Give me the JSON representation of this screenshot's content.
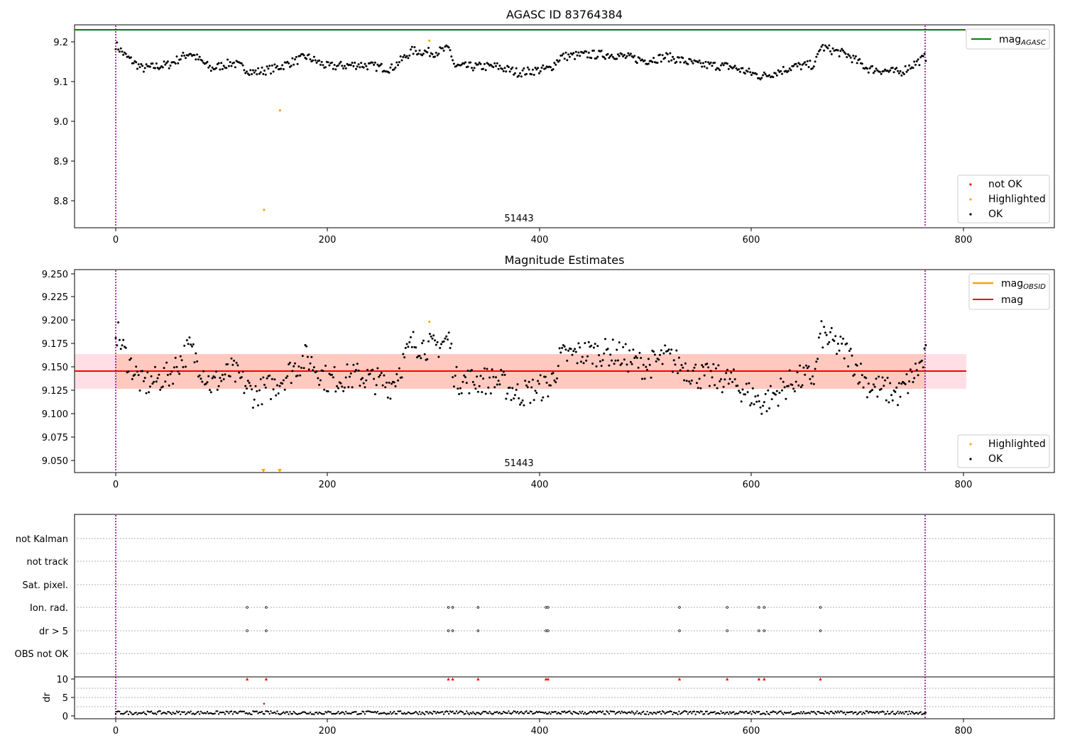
{
  "figure": {
    "panel1": {
      "title": "AGASC ID 83764384",
      "obsid_label": "51443",
      "yticks": [
        "8.8",
        "8.9",
        "9.0",
        "9.1",
        "9.2"
      ],
      "xticks": [
        "0",
        "200",
        "400",
        "600",
        "800"
      ],
      "legend_top": {
        "line_label": "mag",
        "line_sub": "AGASC"
      },
      "legend_bottom": [
        "not OK",
        "Highlighted",
        "OK"
      ]
    },
    "panel2": {
      "title": "Magnitude Estimates",
      "obsid_label": "51443",
      "yticks": [
        "9.050",
        "9.075",
        "9.100",
        "9.125",
        "9.150",
        "9.175",
        "9.200",
        "9.225",
        "9.250"
      ],
      "xticks": [
        "0",
        "200",
        "400",
        "600",
        "800"
      ],
      "legend_top": {
        "line1_label": "mag",
        "line1_sub": "OBSID",
        "line2_label": "mag"
      },
      "legend_bottom": [
        "Highlighted",
        "OK"
      ]
    },
    "panel3": {
      "flag_labels": [
        "not Kalman",
        "not track",
        "Sat. pixel.",
        "Ion. rad.",
        "dr > 5",
        "OBS not OK"
      ],
      "dr_label": "dr",
      "dr_yticks": [
        "0",
        "5",
        "10"
      ],
      "xticks": [
        "0",
        "200",
        "400",
        "600",
        "800"
      ]
    }
  },
  "colors": {
    "ok": "#000000",
    "highlighted": "#ffa500",
    "not_ok": "#ff0000",
    "agasc_line": "#008000",
    "obsid_line": "#ffa500",
    "mag_line": "#ff0000",
    "obs_boundary": "#800080",
    "mag_band_outer": "#ffc0cb",
    "mag_band_inner": "#ffa07a"
  },
  "chart_data": [
    {
      "type": "scatter",
      "title": "AGASC ID 83764384",
      "xlim": [
        -40,
        890
      ],
      "ylim": [
        8.73,
        9.24
      ],
      "agasc_mag": 9.23,
      "obs_boundaries": [
        0,
        765
      ],
      "highlighted_points": [
        [
          140,
          8.775
        ],
        [
          155,
          9.025
        ],
        [
          296,
          9.2
        ]
      ],
      "ok_series_x_range": [
        0,
        765
      ],
      "ok_trend": [
        [
          0,
          9.19
        ],
        [
          10,
          9.16
        ],
        [
          25,
          9.13
        ],
        [
          50,
          9.14
        ],
        [
          70,
          9.17
        ],
        [
          90,
          9.13
        ],
        [
          110,
          9.145
        ],
        [
          130,
          9.12
        ],
        [
          150,
          9.13
        ],
        [
          180,
          9.16
        ],
        [
          200,
          9.135
        ],
        [
          230,
          9.14
        ],
        [
          260,
          9.13
        ],
        [
          280,
          9.175
        ],
        [
          300,
          9.17
        ],
        [
          315,
          9.18
        ],
        [
          320,
          9.135
        ],
        [
          360,
          9.135
        ],
        [
          380,
          9.12
        ],
        [
          410,
          9.13
        ],
        [
          420,
          9.16
        ],
        [
          445,
          9.165
        ],
        [
          470,
          9.165
        ],
        [
          500,
          9.15
        ],
        [
          520,
          9.16
        ],
        [
          550,
          9.14
        ],
        [
          580,
          9.135
        ],
        [
          610,
          9.11
        ],
        [
          640,
          9.135
        ],
        [
          660,
          9.14
        ],
        [
          665,
          9.185
        ],
        [
          690,
          9.165
        ],
        [
          710,
          9.13
        ],
        [
          740,
          9.12
        ],
        [
          765,
          9.16
        ]
      ]
    },
    {
      "type": "scatter",
      "title": "Magnitude Estimates",
      "xlim": [
        -40,
        890
      ],
      "ylim": [
        9.036,
        9.254
      ],
      "mag": 9.145,
      "mag_band_outer": [
        9.126,
        9.164
      ],
      "mag_band_inner": [
        9.126,
        9.164
      ],
      "obs_boundaries": [
        0,
        765
      ],
      "highlighted_points": [
        [
          296,
          9.198
        ]
      ],
      "highlighted_below_axis_x": [
        140,
        155
      ]
    },
    {
      "type": "scatter",
      "flag_rows": [
        "not Kalman",
        "not track",
        "Sat. pixel.",
        "Ion. rad.",
        "dr > 5",
        "OBS not OK"
      ],
      "flag_events_x": [
        124,
        142,
        314,
        318,
        342,
        406,
        408,
        532,
        577,
        607,
        612,
        665
      ],
      "flag_rows_with_events": [
        "Ion. rad.",
        "dr > 5"
      ],
      "dr_ylim": [
        -1,
        11
      ],
      "dr_high_points": [
        124,
        142,
        314,
        318,
        342,
        406,
        408,
        532,
        577,
        607,
        612,
        665
      ],
      "dr_outliers": [
        [
          140,
          3.3
        ]
      ]
    }
  ]
}
